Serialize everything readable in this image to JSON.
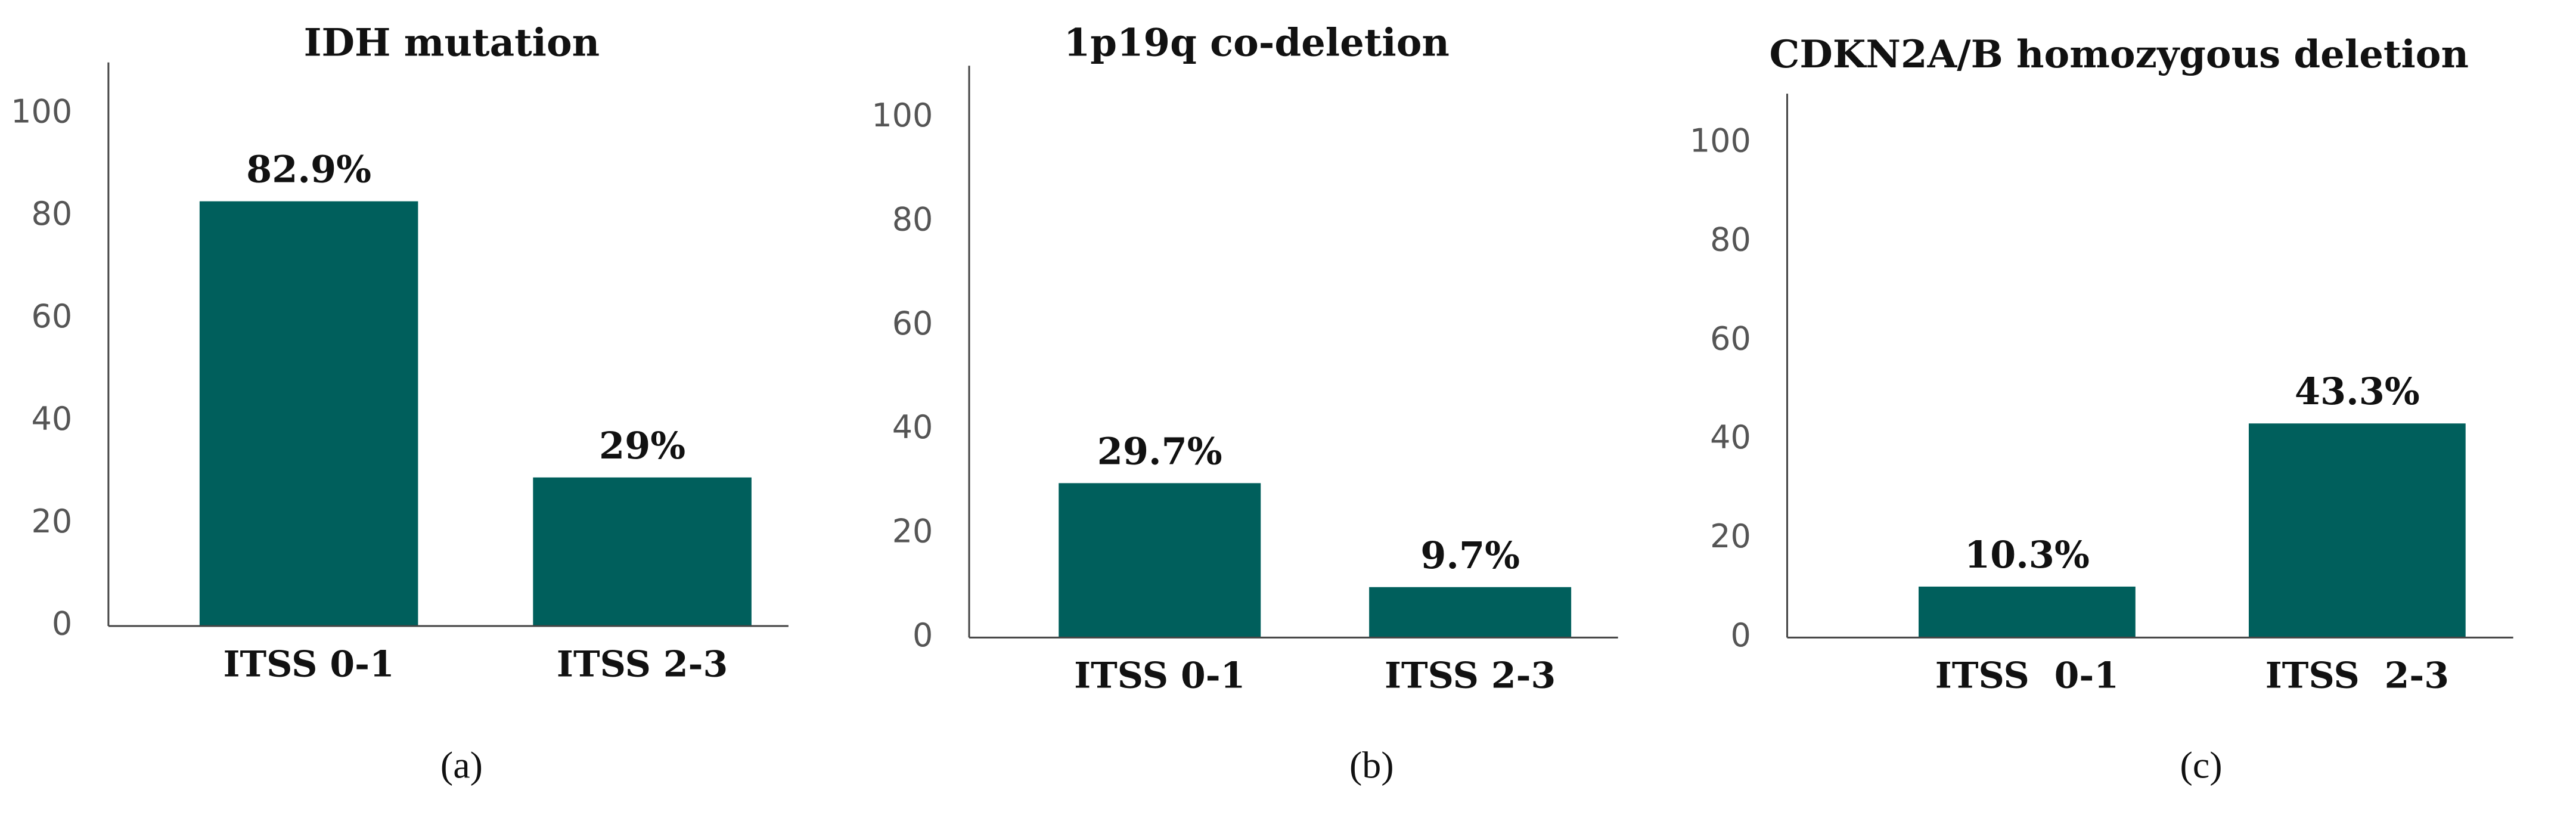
{
  "chart_data": [
    {
      "type": "bar",
      "title": "IDH mutation",
      "caption": "(a)",
      "categories": [
        "ITSS 0-1",
        "ITSS 2-3"
      ],
      "values": [
        82.9,
        29
      ],
      "value_labels": [
        "82.9%",
        "29%"
      ],
      "color": "#005f5c",
      "ylim": [
        0,
        110
      ],
      "yticks": [
        0,
        20,
        40,
        60,
        80,
        100
      ],
      "grid": false
    },
    {
      "type": "bar",
      "title": "1p19q co-deletion",
      "caption": "(b)",
      "categories": [
        "ITSS 0-1",
        "ITSS 2-3"
      ],
      "values": [
        29.7,
        9.7
      ],
      "value_labels": [
        "29.7%",
        "9.7%"
      ],
      "color": "#005f5c",
      "ylim": [
        0,
        110
      ],
      "yticks": [
        0,
        20,
        40,
        60,
        80,
        100
      ],
      "grid": false
    },
    {
      "type": "bar",
      "title": "CDKN2A/B homozygous deletion",
      "caption": "(c)",
      "categories": [
        "ITSS  0-1",
        "ITSS  2-3"
      ],
      "values": [
        10.3,
        43.3
      ],
      "value_labels": [
        "10.3%",
        "43.3%"
      ],
      "color": "#005f5c",
      "ylim": [
        0,
        110
      ],
      "yticks": [
        0,
        20,
        40,
        60,
        80,
        100
      ],
      "grid": false
    }
  ]
}
